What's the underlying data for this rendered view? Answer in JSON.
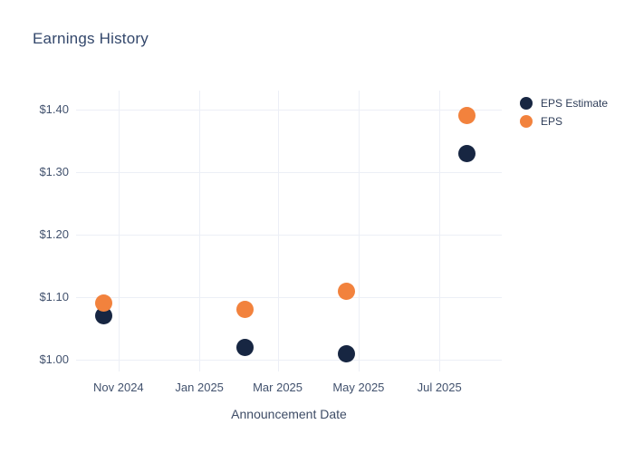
{
  "title": "Earnings History",
  "colors": {
    "background": "#FFFFFF",
    "grid": "#ECEFF6",
    "title_text": "#33476B",
    "tick_text": "#42526E",
    "legend_text": "#2E3D58",
    "eps_estimate": "#172642",
    "eps": "#F2823D"
  },
  "legend": {
    "position": "top-right",
    "items": [
      {
        "label": "EPS Estimate",
        "color": "#172642"
      },
      {
        "label": "EPS",
        "color": "#F2823D"
      }
    ]
  },
  "chart_data": {
    "type": "scatter",
    "title": "Earnings History",
    "xlabel": "Announcement Date",
    "ylabel": "",
    "x_type": "date",
    "grid": true,
    "legend_position": "top-right",
    "xlim": [
      "2024-09-30",
      "2025-08-17"
    ],
    "ylim": [
      0.9812,
      1.4304
    ],
    "x_ticks": [
      {
        "value": "2024-11-01",
        "label": "Nov 2024"
      },
      {
        "value": "2025-01-01",
        "label": "Jan 2025"
      },
      {
        "value": "2025-03-01",
        "label": "Mar 2025"
      },
      {
        "value": "2025-05-01",
        "label": "May 2025"
      },
      {
        "value": "2025-07-01",
        "label": "Jul 2025"
      }
    ],
    "y_ticks": [
      {
        "value": 1.0,
        "label": "$1.00"
      },
      {
        "value": 1.1,
        "label": "$1.10"
      },
      {
        "value": 1.2,
        "label": "$1.20"
      },
      {
        "value": 1.3,
        "label": "$1.30"
      },
      {
        "value": 1.4,
        "label": "$1.40"
      }
    ],
    "series": [
      {
        "name": "EPS Estimate",
        "color": "#172642",
        "marker_size_px": 19,
        "points": [
          {
            "x": "2024-10-21",
            "y": 1.07
          },
          {
            "x": "2025-02-04",
            "y": 1.02
          },
          {
            "x": "2025-04-22",
            "y": 1.01
          },
          {
            "x": "2025-07-22",
            "y": 1.33
          }
        ]
      },
      {
        "name": "EPS",
        "color": "#F2823D",
        "marker_size_px": 19,
        "points": [
          {
            "x": "2024-10-21",
            "y": 1.09
          },
          {
            "x": "2025-02-04",
            "y": 1.08
          },
          {
            "x": "2025-04-22",
            "y": 1.11
          },
          {
            "x": "2025-07-22",
            "y": 1.39
          }
        ]
      }
    ]
  }
}
